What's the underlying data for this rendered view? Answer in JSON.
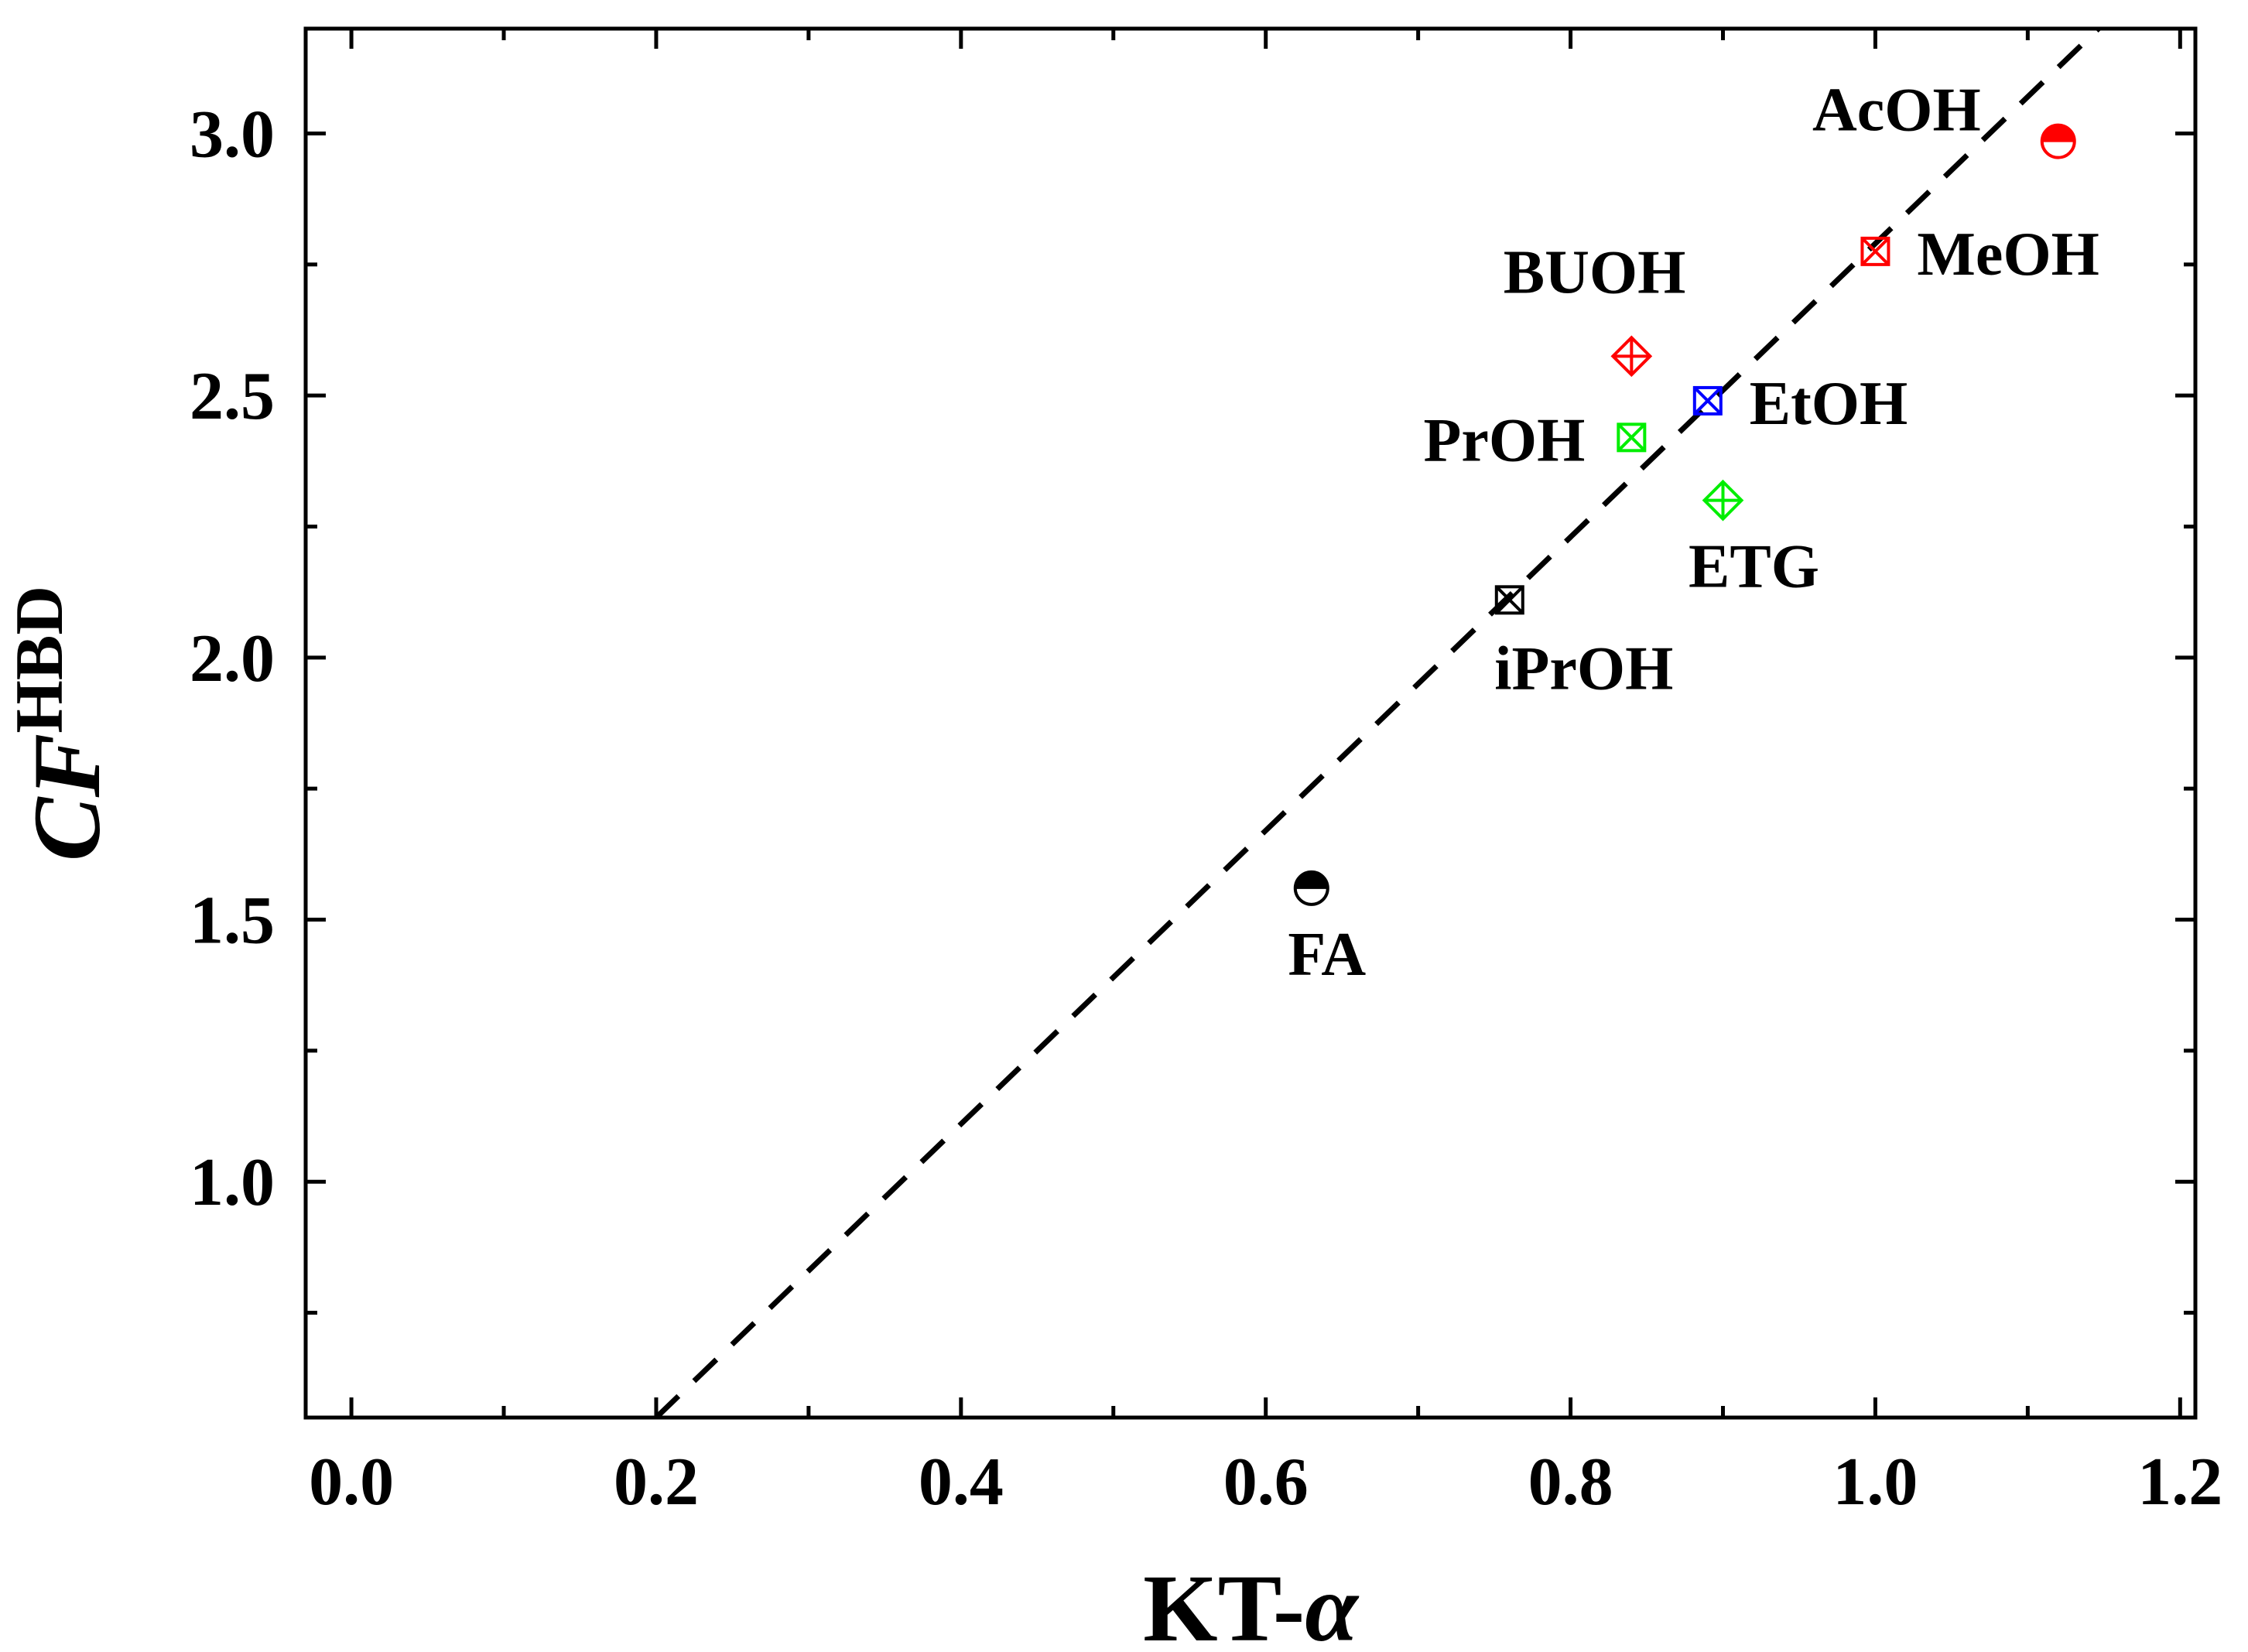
{
  "chart_data": {
    "type": "scatter",
    "title": "",
    "xlabel": {
      "main": "KT-",
      "symbol": "α"
    },
    "ylabel": {
      "main": "CF",
      "superscript": "HBD"
    },
    "xlim": [
      -0.03,
      1.21
    ],
    "ylim": [
      0.55,
      3.2
    ],
    "xticks": [
      0.0,
      0.2,
      0.4,
      0.6,
      0.8,
      1.0,
      1.2
    ],
    "xtick_labels": [
      "0.0",
      "0.2",
      "0.4",
      "0.6",
      "0.8",
      "1.0",
      "1.2"
    ],
    "yticks": [
      1.0,
      1.5,
      2.0,
      2.5,
      3.0
    ],
    "ytick_labels": [
      "1.0",
      "1.5",
      "2.0",
      "2.5",
      "3.0"
    ],
    "grid": false,
    "points": [
      {
        "name": "AcOH",
        "x": 1.12,
        "y": 2.985,
        "marker": "half-circle",
        "color": "#ff0000",
        "label_pos": "upper-left"
      },
      {
        "name": "MeOH",
        "x": 1.0,
        "y": 2.775,
        "marker": "square-x",
        "color": "#ff0000",
        "label_pos": "right"
      },
      {
        "name": "BUOH",
        "x": 0.84,
        "y": 2.575,
        "marker": "diamond-plus",
        "color": "#ff0000",
        "label_pos": "upper-left"
      },
      {
        "name": "EtOH",
        "x": 0.89,
        "y": 2.49,
        "marker": "square-x",
        "color": "#0000ff",
        "label_pos": "right"
      },
      {
        "name": "PrOH",
        "x": 0.84,
        "y": 2.42,
        "marker": "square-x",
        "color": "#00ee00",
        "label_pos": "left"
      },
      {
        "name": "ETG",
        "x": 0.9,
        "y": 2.3,
        "marker": "diamond-plus",
        "color": "#00ee00",
        "label_pos": "below"
      },
      {
        "name": "iPrOH",
        "x": 0.76,
        "y": 2.11,
        "marker": "square-x",
        "color": "#000000",
        "label_pos": "below"
      },
      {
        "name": "FA",
        "x": 0.63,
        "y": 1.56,
        "marker": "half-circle",
        "color": "#000000",
        "label_pos": "below"
      }
    ],
    "fit_line": {
      "style": "dashed",
      "color": "#000000",
      "x_start": 0.2,
      "y_start": 0.55,
      "slope": 2.8,
      "intercept": -0.01
    }
  }
}
